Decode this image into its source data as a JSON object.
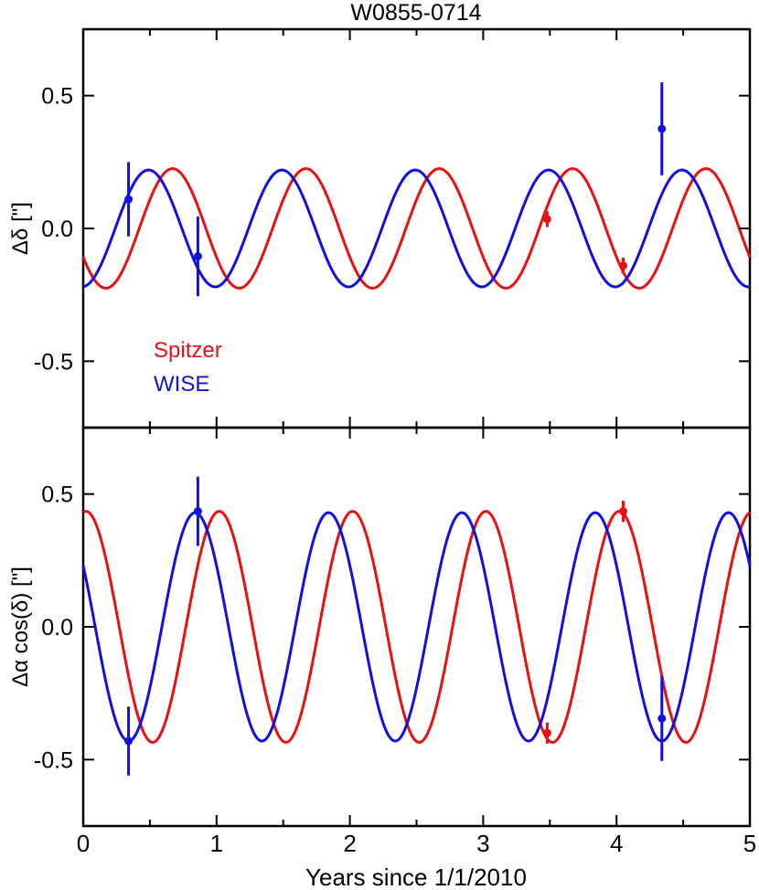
{
  "chart_data": [
    {
      "type": "line",
      "title": "W0855-0714",
      "ylabel": "Δδ [\"]",
      "xlim": [
        0,
        5
      ],
      "ylim": [
        -0.75,
        0.75
      ],
      "yticks": [
        "0.5",
        "0.0",
        "-0.5"
      ],
      "legend": {
        "placement": "bottom-left",
        "entries": [
          "Spitzer",
          "WISE"
        ]
      },
      "series": [
        {
          "name": "Spitzer",
          "color": "#e81010",
          "model": {
            "amplitude": 0.225,
            "period": 1.0,
            "peak_x": 0.67
          },
          "points": [
            {
              "x": 3.48,
              "y": 0.035,
              "err": 0.03
            },
            {
              "x": 4.05,
              "y": -0.14,
              "err": 0.03
            }
          ]
        },
        {
          "name": "WISE",
          "color": "#1010e0",
          "model": {
            "amplitude": 0.22,
            "period": 1.0,
            "peak_x": 0.49
          },
          "points": [
            {
              "x": 0.34,
              "y": 0.11,
              "err": 0.14
            },
            {
              "x": 0.86,
              "y": -0.105,
              "err": 0.15
            },
            {
              "x": 4.34,
              "y": 0.375,
              "err": 0.175
            }
          ]
        }
      ]
    },
    {
      "type": "line",
      "ylabel": "Δα cos(δ) [\"]",
      "xlabel": "Years since 1/1/2010",
      "xlim": [
        0,
        5
      ],
      "ylim": [
        -0.75,
        0.75
      ],
      "xticks": [
        "0",
        "1",
        "2",
        "3",
        "4",
        "5"
      ],
      "yticks": [
        "0.5",
        "0.0",
        "-0.5"
      ],
      "series": [
        {
          "name": "Spitzer",
          "color": "#e81010",
          "model": {
            "amplitude": 0.435,
            "period": 1.0,
            "peak_x": 0.02
          },
          "points": [
            {
              "x": 3.48,
              "y": -0.4,
              "err": 0.04
            },
            {
              "x": 4.05,
              "y": 0.435,
              "err": 0.04
            }
          ]
        },
        {
          "name": "WISE",
          "color": "#1010e0",
          "model": {
            "amplitude": 0.43,
            "period": 1.0,
            "peak_x": 0.84
          },
          "points": [
            {
              "x": 0.34,
              "y": -0.43,
              "err": 0.13
            },
            {
              "x": 0.86,
              "y": 0.435,
              "err": 0.13
            },
            {
              "x": 4.34,
              "y": -0.345,
              "err": 0.16
            }
          ]
        }
      ]
    }
  ]
}
